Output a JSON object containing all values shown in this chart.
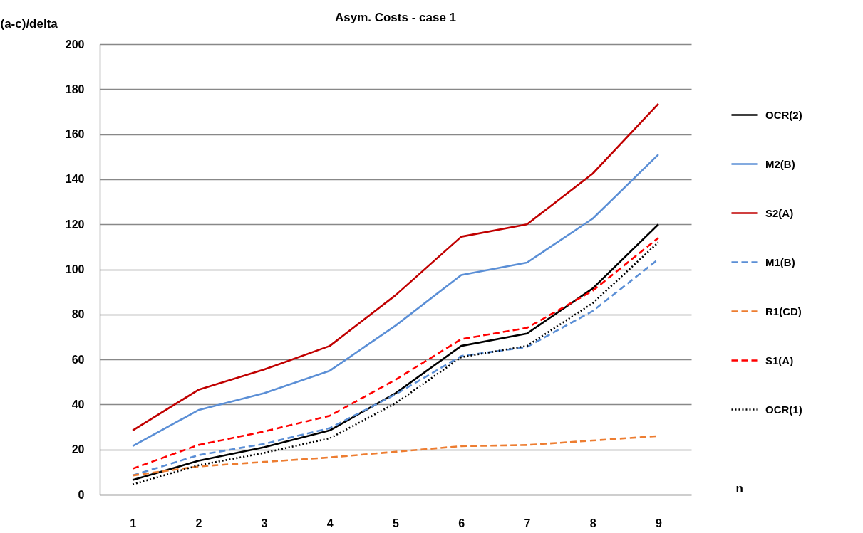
{
  "chart_data": {
    "type": "line",
    "title": "Asym. Costs - case 1",
    "xlabel": "n",
    "ylabel": "(a-c)/delta",
    "categories": [
      "1",
      "2",
      "3",
      "4",
      "5",
      "6",
      "7",
      "8",
      "9"
    ],
    "series": [
      {
        "name": "OCR(2)",
        "color": "#000000",
        "line_style": "solid",
        "values": [
          6.5,
          15,
          21,
          28.5,
          45,
          66,
          71.5,
          91.5,
          120
        ]
      },
      {
        "name": "M2(B)",
        "color": "#5b8fd6",
        "line_style": "solid",
        "values": [
          21.5,
          37.5,
          45,
          55,
          75,
          97.5,
          103,
          122.5,
          151
        ]
      },
      {
        "name": "S2(A)",
        "color": "#c00000",
        "line_style": "solid",
        "values": [
          28.5,
          46.5,
          55.5,
          66,
          88.5,
          114.5,
          120,
          142.5,
          173.5
        ]
      },
      {
        "name": "M1(B)",
        "color": "#5b8fd6",
        "line_style": "dashed",
        "values": [
          8.5,
          17.5,
          22.5,
          29.5,
          44.5,
          61.5,
          65.5,
          81.5,
          104.5
        ]
      },
      {
        "name": "R1(CD)",
        "color": "#ed7d31",
        "line_style": "dashed",
        "values": [
          8.5,
          12.5,
          14.5,
          16.5,
          19,
          21.5,
          22,
          24,
          26
        ]
      },
      {
        "name": "S1(A)",
        "color": "#ff0000",
        "line_style": "dashed",
        "values": [
          11.5,
          22,
          28,
          35,
          51,
          69,
          74,
          90.5,
          114
        ]
      },
      {
        "name": "OCR(1)",
        "color": "#000000",
        "line_style": "dotted",
        "values": [
          4.5,
          13,
          18.5,
          25,
          40.5,
          61,
          66,
          85,
          112
        ]
      }
    ],
    "ylim": [
      0,
      200
    ],
    "yticks": [
      0,
      20,
      40,
      60,
      80,
      100,
      120,
      140,
      160,
      180,
      200
    ],
    "grid": "y",
    "legend": "right"
  }
}
